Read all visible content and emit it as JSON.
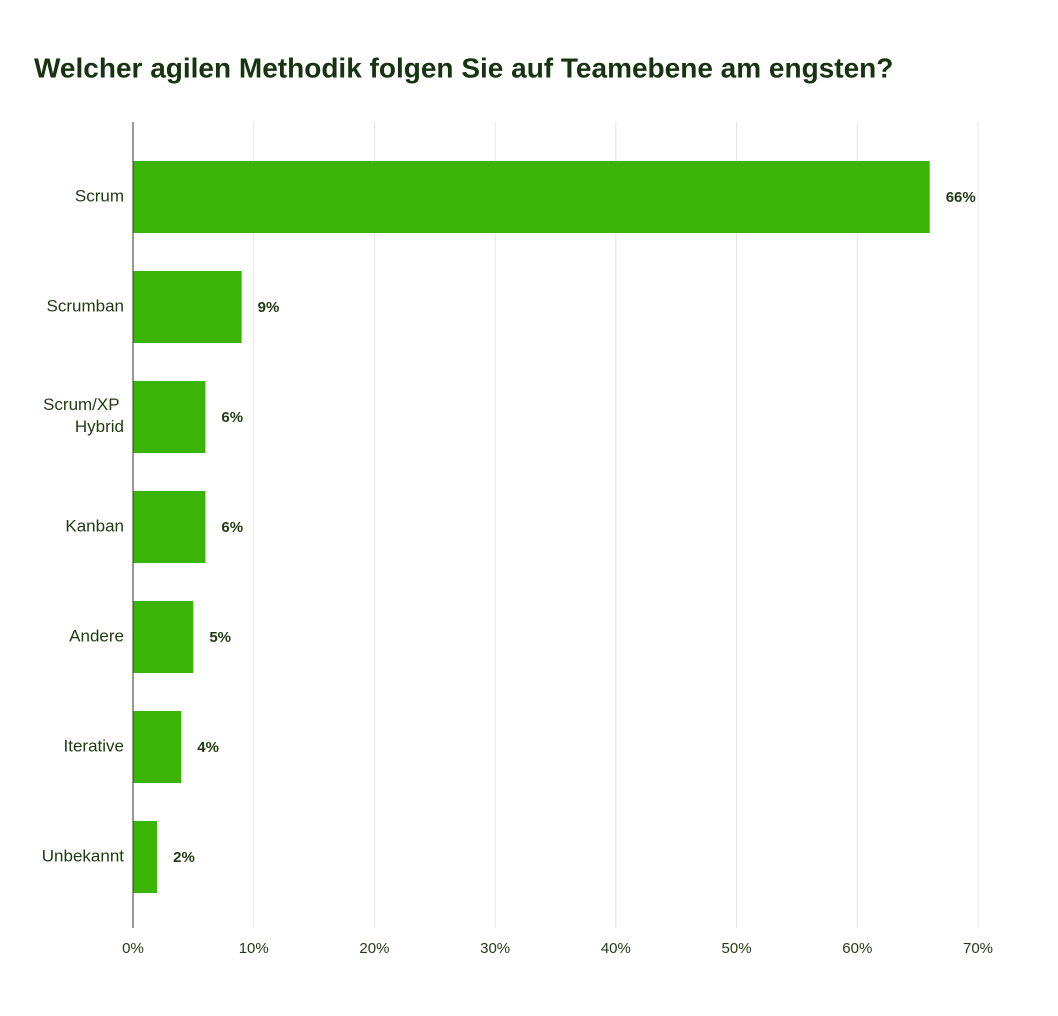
{
  "chart_data": {
    "type": "bar",
    "orientation": "horizontal",
    "title": "Welcher agilen Methodik folgen Sie auf Teamebene am engsten?",
    "categories": [
      "Scrum",
      "Scrumban",
      "Scrum/XP Hybrid",
      "Kanban",
      "Andere",
      "Iterative",
      "Unbekannt"
    ],
    "values": [
      66,
      9,
      6,
      6,
      5,
      4,
      2
    ],
    "value_labels": [
      "66%",
      "9%",
      "6%",
      "6%",
      "5%",
      "4%",
      "2%"
    ],
    "color": "#3cb307",
    "xlim": [
      0,
      70
    ],
    "xticks": [
      {
        "value": 0,
        "label": "0%"
      },
      {
        "value": 10,
        "label": "10%"
      },
      {
        "value": 20,
        "label": "20%"
      },
      {
        "value": 30,
        "label": "30%"
      },
      {
        "value": 40,
        "label": "40%"
      },
      {
        "value": 50,
        "label": "50%"
      },
      {
        "value": 60,
        "label": "60%"
      },
      {
        "value": 70,
        "label": "70%"
      }
    ],
    "grid": true
  }
}
